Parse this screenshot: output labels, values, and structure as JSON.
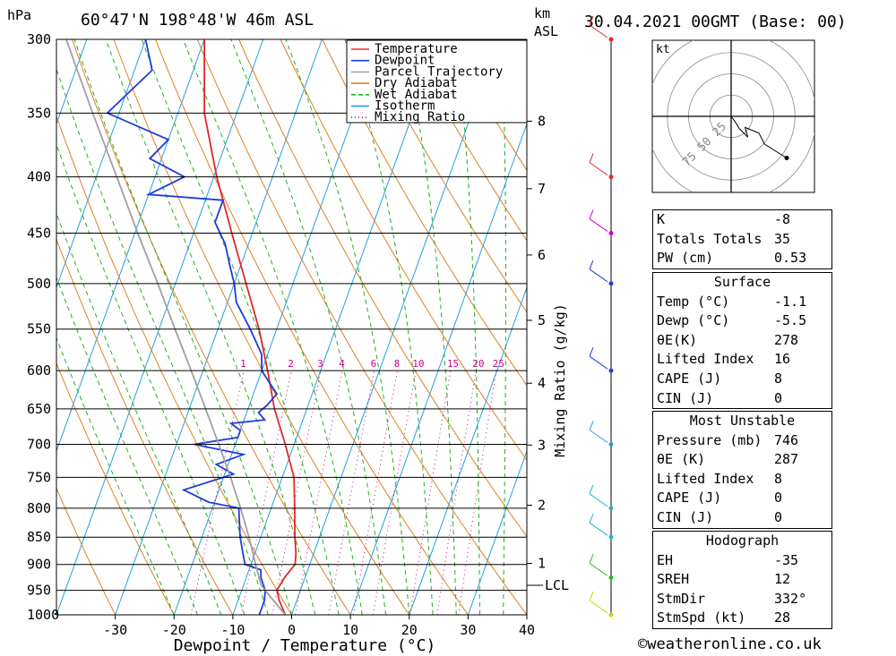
{
  "header": {
    "units_left": "hPa",
    "location": "60°47'N  198°48'W  46m  ASL",
    "units_km": "km",
    "units_asl": "ASL",
    "datetime": "30.04.2021  00GMT  (Base: 00)"
  },
  "legend": [
    {
      "label": "Temperature",
      "color": "#e02828",
      "style": "solid"
    },
    {
      "label": "Dewpoint",
      "color": "#1e3cdc",
      "style": "solid"
    },
    {
      "label": "Parcel Trajectory",
      "color": "#a0a0a0",
      "style": "solid"
    },
    {
      "label": "Dry Adiabat",
      "color": "#e08020",
      "style": "solid"
    },
    {
      "label": "Wet Adiabat",
      "color": "#20b020",
      "style": "dashed"
    },
    {
      "label": "Isotherm",
      "color": "#20a0e0",
      "style": "solid"
    },
    {
      "label": "Mixing Ratio",
      "color": "#c8008c",
      "style": "dotted"
    }
  ],
  "chart_data": {
    "type": "line",
    "xlabel": "Dewpoint / Temperature (°C)",
    "ylabel": "hPa",
    "right_axis_label": "Mixing Ratio (g/kg)",
    "pressure_levels": [
      300,
      350,
      400,
      450,
      500,
      550,
      600,
      650,
      700,
      750,
      800,
      850,
      900,
      950,
      1000
    ],
    "x_ticks": [
      -30,
      -20,
      -10,
      0,
      10,
      20,
      30,
      40
    ],
    "xlim": [
      -40,
      40
    ],
    "ylim": [
      1000,
      300
    ],
    "skew_deg_per_log": 29.2,
    "km_ticks": [
      {
        "label": "8",
        "p": 356
      },
      {
        "label": "7",
        "p": 410
      },
      {
        "label": "6",
        "p": 471
      },
      {
        "label": "5",
        "p": 540
      },
      {
        "label": "4",
        "p": 616
      },
      {
        "label": "3",
        "p": 701
      },
      {
        "label": "2",
        "p": 795
      },
      {
        "label": "1",
        "p": 898
      }
    ],
    "lcl": {
      "label": "LCL",
      "p": 940
    },
    "mixing_ratio_labels": [
      "1",
      "2",
      "3",
      "4",
      "6",
      "8",
      "10",
      "15",
      "20",
      "25"
    ],
    "series": [
      {
        "name": "Temperature",
        "color": "#e02828",
        "points": [
          [
            1000,
            -1.1
          ],
          [
            970,
            -3.0
          ],
          [
            950,
            -4.0
          ],
          [
            925,
            -3.5
          ],
          [
            900,
            -2.5
          ],
          [
            880,
            -3.0
          ],
          [
            850,
            -4.2
          ],
          [
            800,
            -6.0
          ],
          [
            750,
            -8.0
          ],
          [
            700,
            -11.5
          ],
          [
            650,
            -15.5
          ],
          [
            600,
            -19.0
          ],
          [
            550,
            -23.0
          ],
          [
            500,
            -28.0
          ],
          [
            450,
            -33.5
          ],
          [
            400,
            -39.5
          ],
          [
            350,
            -45.5
          ],
          [
            300,
            -50.0
          ]
        ]
      },
      {
        "name": "Dewpoint",
        "color": "#1e3cdc",
        "points": [
          [
            1000,
            -5.5
          ],
          [
            970,
            -5.5
          ],
          [
            950,
            -6.0
          ],
          [
            925,
            -7.5
          ],
          [
            910,
            -8.0
          ],
          [
            900,
            -11.0
          ],
          [
            880,
            -12.0
          ],
          [
            850,
            -13.5
          ],
          [
            800,
            -15.5
          ],
          [
            790,
            -21.0
          ],
          [
            770,
            -26.0
          ],
          [
            745,
            -18.5
          ],
          [
            730,
            -22.0
          ],
          [
            715,
            -18.0
          ],
          [
            700,
            -27.0
          ],
          [
            690,
            -20.0
          ],
          [
            680,
            -20.0
          ],
          [
            670,
            -22.0
          ],
          [
            665,
            -16.5
          ],
          [
            655,
            -18.0
          ],
          [
            645,
            -17.0
          ],
          [
            630,
            -16.0
          ],
          [
            600,
            -20.0
          ],
          [
            580,
            -21.0
          ],
          [
            550,
            -24.5
          ],
          [
            520,
            -28.5
          ],
          [
            500,
            -30.0
          ],
          [
            480,
            -32.0
          ],
          [
            460,
            -34.0
          ],
          [
            440,
            -37.0
          ],
          [
            420,
            -37.0
          ],
          [
            415,
            -50.0
          ],
          [
            400,
            -45.0
          ],
          [
            385,
            -52.0
          ],
          [
            370,
            -50.0
          ],
          [
            350,
            -62.0
          ],
          [
            320,
            -57.0
          ],
          [
            300,
            -60.0
          ]
        ]
      },
      {
        "name": "Parcel Trajectory",
        "color": "#a0a0a0",
        "points": [
          [
            1000,
            -1.1
          ],
          [
            940,
            -7.0
          ],
          [
            900,
            -9.2
          ],
          [
            850,
            -12.0
          ],
          [
            800,
            -15.2
          ],
          [
            750,
            -18.8
          ],
          [
            700,
            -22.8
          ],
          [
            650,
            -27.2
          ],
          [
            600,
            -32.0
          ],
          [
            550,
            -37.3
          ],
          [
            500,
            -43.0
          ],
          [
            450,
            -49.5
          ],
          [
            400,
            -56.5
          ],
          [
            350,
            -64.5
          ],
          [
            300,
            -73.5
          ]
        ]
      }
    ]
  },
  "wind_barbs": {
    "colors_by_level": [
      "#e02828",
      "#e02828",
      "#c800c8",
      "#1e3cdc",
      "#1e3cdc",
      "#20a0e0",
      "#20b8c8",
      "#20b8c8",
      "#20c020",
      "#d0d000"
    ]
  },
  "hodograph": {
    "units": "kt",
    "ring_labels": [
      "25",
      "50",
      "75"
    ],
    "points": [
      [
        0,
        0
      ],
      [
        3,
        -4
      ],
      [
        6,
        -9
      ],
      [
        12,
        -15
      ],
      [
        10,
        -8
      ],
      [
        20,
        -12
      ],
      [
        24,
        -20
      ],
      [
        40,
        -30
      ]
    ]
  },
  "panels": {
    "indices": [
      {
        "label": "K",
        "value": "-8"
      },
      {
        "label": "Totals Totals",
        "value": "35"
      },
      {
        "label": "PW (cm)",
        "value": "0.53"
      }
    ],
    "surface": {
      "title": "Surface",
      "rows": [
        {
          "label": "Temp (°C)",
          "value": "-1.1"
        },
        {
          "label": "Dewp (°C)",
          "value": "-5.5"
        },
        {
          "label": "θE(K)",
          "value": "278"
        },
        {
          "label": "Lifted Index",
          "value": "16"
        },
        {
          "label": "CAPE (J)",
          "value": "8"
        },
        {
          "label": "CIN (J)",
          "value": "0"
        }
      ]
    },
    "most_unstable": {
      "title": "Most Unstable",
      "rows": [
        {
          "label": "Pressure (mb)",
          "value": "746"
        },
        {
          "label": "θE (K)",
          "value": "287"
        },
        {
          "label": "Lifted Index",
          "value": "8"
        },
        {
          "label": "CAPE (J)",
          "value": "0"
        },
        {
          "label": "CIN (J)",
          "value": "0"
        }
      ]
    },
    "hodograph_panel": {
      "title": "Hodograph",
      "rows": [
        {
          "label": "EH",
          "value": "-35"
        },
        {
          "label": "SREH",
          "value": "12"
        },
        {
          "label": "StmDir",
          "value": "332°"
        },
        {
          "label": "StmSpd (kt)",
          "value": "28"
        }
      ]
    }
  },
  "footer": "©weatheronline.co.uk"
}
